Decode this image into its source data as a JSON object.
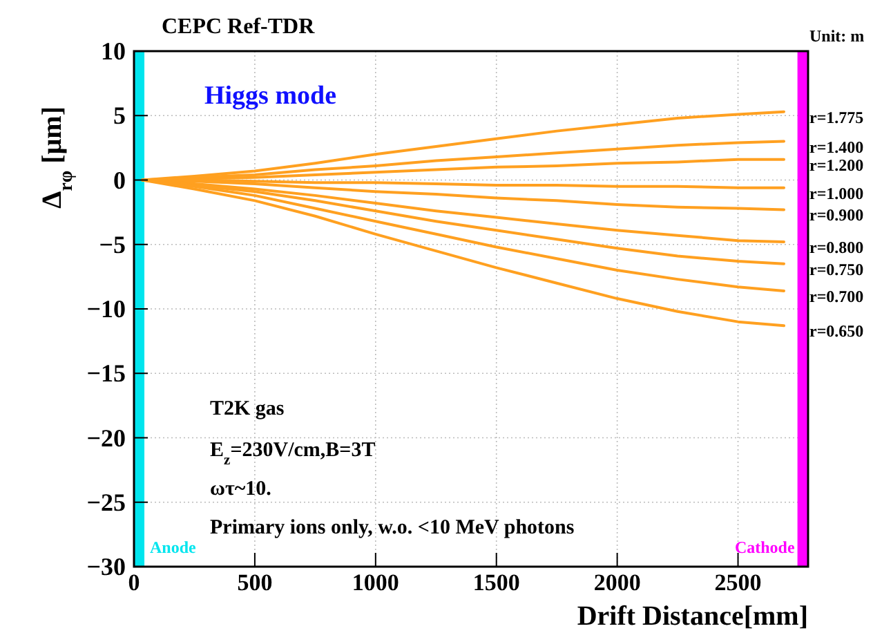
{
  "chart_data": {
    "type": "line",
    "title": "CEPC  Ref-TDR",
    "xlabel": "Drift Distance[mm]",
    "ylabel": "Δ$_{rφ}$  [μm]",
    "annotations": [
      "Higgs mode",
      "T2K gas",
      "E$_{z}$=230V/cm,B=3T",
      "ωτ~10.",
      "Primary ions only, w.o. <10 MeV photons",
      "Unit: m"
    ],
    "x": [
      35,
      250,
      500,
      750,
      1000,
      1250,
      1500,
      1750,
      2000,
      2250,
      2500,
      2690
    ],
    "series": [
      {
        "name": "r=1.775",
        "color": "#ffa020",
        "values": [
          0,
          0.3,
          0.7,
          1.3,
          2.0,
          2.6,
          3.2,
          3.8,
          4.3,
          4.8,
          5.1,
          5.3
        ]
      },
      {
        "name": "r=1.400",
        "color": "#ffa020",
        "values": [
          0,
          0.2,
          0.4,
          0.8,
          1.1,
          1.5,
          1.8,
          2.1,
          2.4,
          2.7,
          2.9,
          3.0
        ]
      },
      {
        "name": "r=1.200",
        "color": "#ffa020",
        "values": [
          0,
          0.1,
          0.2,
          0.4,
          0.6,
          0.8,
          1.0,
          1.1,
          1.3,
          1.4,
          1.6,
          1.6
        ]
      },
      {
        "name": "r=1.000",
        "color": "#ffa020",
        "values": [
          0,
          0,
          -0.1,
          -0.2,
          -0.2,
          -0.3,
          -0.4,
          -0.4,
          -0.5,
          -0.5,
          -0.6,
          -0.6
        ]
      },
      {
        "name": "r=0.900",
        "color": "#ffa020",
        "values": [
          0,
          -0.1,
          -0.3,
          -0.6,
          -0.9,
          -1.1,
          -1.4,
          -1.6,
          -1.9,
          -2.1,
          -2.2,
          -2.3
        ]
      },
      {
        "name": "r=0.800",
        "color": "#ffa020",
        "values": [
          0,
          -0.3,
          -0.7,
          -1.2,
          -1.8,
          -2.4,
          -2.9,
          -3.4,
          -3.9,
          -4.3,
          -4.7,
          -4.8
        ]
      },
      {
        "name": "r=0.750",
        "color": "#ffa020",
        "values": [
          0,
          -0.4,
          -0.9,
          -1.6,
          -2.4,
          -3.2,
          -3.9,
          -4.6,
          -5.3,
          -5.9,
          -6.3,
          -6.5
        ]
      },
      {
        "name": "r=0.700",
        "color": "#ffa020",
        "values": [
          0,
          -0.5,
          -1.2,
          -2.2,
          -3.2,
          -4.2,
          -5.2,
          -6.1,
          -7.0,
          -7.7,
          -8.3,
          -8.6
        ]
      },
      {
        "name": "r=0.650",
        "color": "#ffa020",
        "values": [
          0,
          -0.7,
          -1.6,
          -2.8,
          -4.2,
          -5.5,
          -6.8,
          -8.0,
          -9.2,
          -10.2,
          -11.0,
          -11.3
        ]
      }
    ],
    "bands": [
      {
        "axis": "x",
        "from": 0,
        "to": 43,
        "label": "Anode",
        "color": "#00e5ee"
      },
      {
        "axis": "x",
        "from": 2746,
        "to": 2790,
        "label": "Cathode",
        "color": "#ff00ff"
      }
    ],
    "xlim": [
      0,
      2790
    ],
    "xticks": [
      0,
      500,
      1000,
      1500,
      2000,
      2500
    ],
    "ylim": [
      -30,
      10
    ],
    "yticks": [
      -30,
      -25,
      -20,
      -15,
      -10,
      -5,
      0,
      5,
      10
    ],
    "grid": true,
    "line_style": "solid",
    "marker": "none"
  }
}
